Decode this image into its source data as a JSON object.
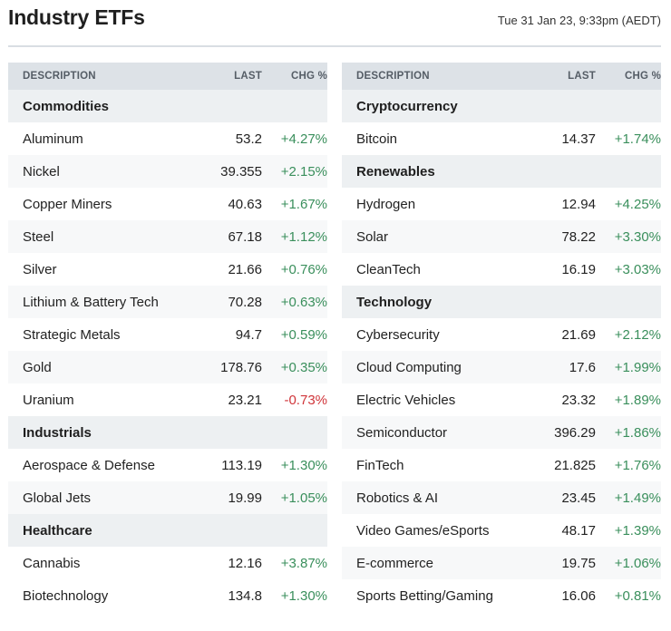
{
  "header": {
    "title": "Industry ETFs",
    "timestamp": "Tue 31 Jan 23, 9:33pm (AEDT)"
  },
  "columns": {
    "description": "DESCRIPTION",
    "last": "LAST",
    "chg": "CHG %"
  },
  "colors": {
    "positive": "#3a8f5c",
    "negative": "#d0353a",
    "header_bg": "#dde2e7",
    "section_bg": "#edf0f2"
  },
  "left": [
    {
      "type": "section",
      "label": "Commodities"
    },
    {
      "type": "item",
      "name": "Aluminum",
      "last": "53.2",
      "chg": "+4.27%",
      "dir": "pos"
    },
    {
      "type": "item",
      "name": "Nickel",
      "last": "39.355",
      "chg": "+2.15%",
      "dir": "pos"
    },
    {
      "type": "item",
      "name": "Copper Miners",
      "last": "40.63",
      "chg": "+1.67%",
      "dir": "pos"
    },
    {
      "type": "item",
      "name": "Steel",
      "last": "67.18",
      "chg": "+1.12%",
      "dir": "pos"
    },
    {
      "type": "item",
      "name": "Silver",
      "last": "21.66",
      "chg": "+0.76%",
      "dir": "pos"
    },
    {
      "type": "item",
      "name": "Lithium & Battery Tech",
      "last": "70.28",
      "chg": "+0.63%",
      "dir": "pos"
    },
    {
      "type": "item",
      "name": "Strategic Metals",
      "last": "94.7",
      "chg": "+0.59%",
      "dir": "pos"
    },
    {
      "type": "item",
      "name": "Gold",
      "last": "178.76",
      "chg": "+0.35%",
      "dir": "pos"
    },
    {
      "type": "item",
      "name": "Uranium",
      "last": "23.21",
      "chg": "-0.73%",
      "dir": "neg"
    },
    {
      "type": "section",
      "label": "Industrials"
    },
    {
      "type": "item",
      "name": "Aerospace & Defense",
      "last": "113.19",
      "chg": "+1.30%",
      "dir": "pos"
    },
    {
      "type": "item",
      "name": "Global Jets",
      "last": "19.99",
      "chg": "+1.05%",
      "dir": "pos"
    },
    {
      "type": "section",
      "label": "Healthcare"
    },
    {
      "type": "item",
      "name": "Cannabis",
      "last": "12.16",
      "chg": "+3.87%",
      "dir": "pos"
    },
    {
      "type": "item",
      "name": "Biotechnology",
      "last": "134.8",
      "chg": "+1.30%",
      "dir": "pos"
    }
  ],
  "right": [
    {
      "type": "section",
      "label": "Cryptocurrency"
    },
    {
      "type": "item",
      "name": "Bitcoin",
      "last": "14.37",
      "chg": "+1.74%",
      "dir": "pos"
    },
    {
      "type": "section",
      "label": "Renewables"
    },
    {
      "type": "item",
      "name": "Hydrogen",
      "last": "12.94",
      "chg": "+4.25%",
      "dir": "pos"
    },
    {
      "type": "item",
      "name": "Solar",
      "last": "78.22",
      "chg": "+3.30%",
      "dir": "pos"
    },
    {
      "type": "item",
      "name": "CleanTech",
      "last": "16.19",
      "chg": "+3.03%",
      "dir": "pos"
    },
    {
      "type": "section",
      "label": "Technology"
    },
    {
      "type": "item",
      "name": "Cybersecurity",
      "last": "21.69",
      "chg": "+2.12%",
      "dir": "pos"
    },
    {
      "type": "item",
      "name": "Cloud Computing",
      "last": "17.6",
      "chg": "+1.99%",
      "dir": "pos"
    },
    {
      "type": "item",
      "name": "Electric Vehicles",
      "last": "23.32",
      "chg": "+1.89%",
      "dir": "pos"
    },
    {
      "type": "item",
      "name": "Semiconductor",
      "last": "396.29",
      "chg": "+1.86%",
      "dir": "pos"
    },
    {
      "type": "item",
      "name": "FinTech",
      "last": "21.825",
      "chg": "+1.76%",
      "dir": "pos"
    },
    {
      "type": "item",
      "name": "Robotics & AI",
      "last": "23.45",
      "chg": "+1.49%",
      "dir": "pos"
    },
    {
      "type": "item",
      "name": "Video Games/eSports",
      "last": "48.17",
      "chg": "+1.39%",
      "dir": "pos"
    },
    {
      "type": "item",
      "name": "E-commerce",
      "last": "19.75",
      "chg": "+1.06%",
      "dir": "pos"
    },
    {
      "type": "item",
      "name": "Sports Betting/Gaming",
      "last": "16.06",
      "chg": "+0.81%",
      "dir": "pos"
    }
  ]
}
